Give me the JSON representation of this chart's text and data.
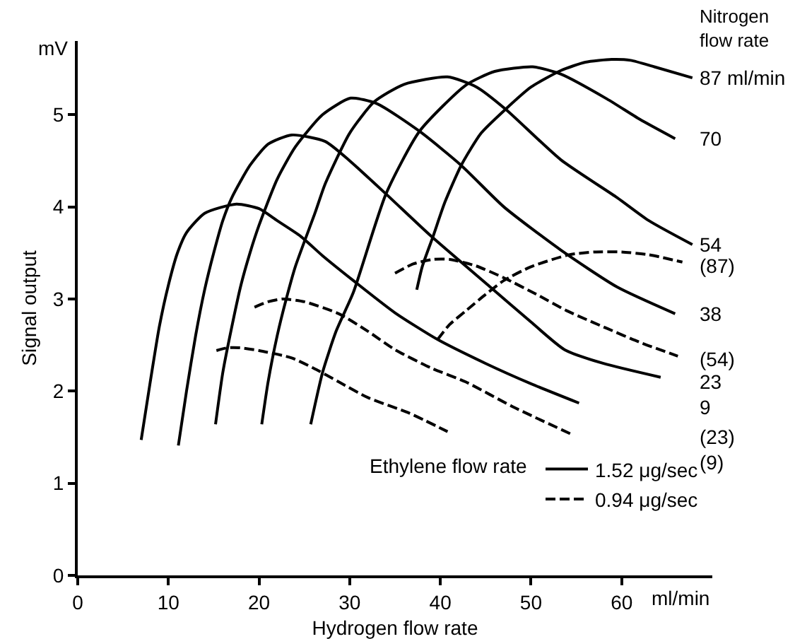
{
  "chart_data": {
    "type": "line",
    "xlabel": "Hydrogen flow rate",
    "ylabel": "Signal output",
    "legend_title": "Ethylene flow rate",
    "xlim": [
      0,
      70
    ],
    "ylim": [
      0,
      5.8
    ],
    "xticks": [
      0,
      10,
      20,
      30,
      40,
      50,
      60
    ],
    "yticks": [
      0,
      1,
      2,
      3,
      4,
      5
    ],
    "grid": false,
    "legend": "bottom right",
    "marker": "none",
    "annotations": [
      "mV",
      "Nitrogen\nflow rate",
      "ml/min",
      "87 ml/min",
      "70",
      "54",
      "(87)",
      "38",
      "(54)",
      "23",
      "9",
      "(23)",
      "(9)"
    ],
    "series": [
      {
        "name": "1.52 μg/sec",
        "color": "#000000",
        "line_style": "solid",
        "x": [
          7,
          8,
          9,
          10,
          11,
          12,
          14,
          17.5,
          20,
          22,
          24.6,
          27,
          30.4,
          35,
          39.7,
          45,
          50,
          55.3
        ],
        "values": [
          1.47,
          2.1,
          2.7,
          3.15,
          3.5,
          3.72,
          3.93,
          4.03,
          3.98,
          3.85,
          3.68,
          3.47,
          3.2,
          2.85,
          2.56,
          2.3,
          2.08,
          1.87
        ]
      },
      {
        "color": "#000000",
        "line_style": "solid",
        "x": [
          11.1,
          12,
          13,
          14,
          15,
          16,
          17,
          19,
          21,
          23.6,
          27.3,
          30,
          34,
          39,
          45.5,
          50,
          53.7,
          58,
          64.3
        ],
        "values": [
          1.41,
          2.0,
          2.6,
          3.1,
          3.5,
          3.85,
          4.1,
          4.45,
          4.68,
          4.78,
          4.71,
          4.5,
          4.14,
          3.68,
          3.13,
          2.75,
          2.45,
          2.3,
          2.15
        ]
      },
      {
        "color": "#000000",
        "line_style": "solid",
        "x": [
          15.2,
          16,
          17,
          18,
          19,
          20,
          22,
          24,
          27,
          30.1,
          33,
          37.7,
          42.3,
          47,
          53.3,
          59.5,
          65.9
        ],
        "values": [
          1.64,
          2.2,
          2.7,
          3.15,
          3.5,
          3.8,
          4.3,
          4.65,
          5.0,
          5.18,
          5.12,
          4.82,
          4.45,
          4.0,
          3.53,
          3.13,
          2.84
        ]
      },
      {
        "color": "#000000",
        "line_style": "solid",
        "x": [
          20.3,
          21,
          22,
          23,
          24,
          26.2,
          27.3,
          30,
          32.7,
          36,
          40.8,
          44,
          47.2,
          53.3,
          59.5,
          63,
          67.8
        ],
        "values": [
          1.64,
          2.1,
          2.6,
          3.0,
          3.35,
          3.94,
          4.25,
          4.8,
          5.14,
          5.33,
          5.41,
          5.3,
          5.06,
          4.51,
          4.1,
          3.85,
          3.59
        ]
      },
      {
        "color": "#000000",
        "line_style": "solid",
        "x": [
          25.7,
          27,
          28.5,
          30.4,
          34,
          37.7,
          42.8,
          46,
          50.2,
          53.3,
          58.4,
          62,
          65.9
        ],
        "values": [
          1.64,
          2.2,
          2.65,
          3.07,
          4.14,
          4.82,
          5.32,
          5.47,
          5.52,
          5.44,
          5.17,
          4.95,
          4.74
        ]
      },
      {
        "color": "#000000",
        "line_style": "solid",
        "x": [
          37.4,
          38,
          39.2,
          40.5,
          42.3,
          44.5,
          47.2,
          50,
          53.3,
          56,
          58.9,
          61,
          63.6,
          67.8
        ],
        "values": [
          3.1,
          3.35,
          3.68,
          4.05,
          4.45,
          4.8,
          5.06,
          5.3,
          5.48,
          5.57,
          5.6,
          5.59,
          5.52,
          5.4
        ]
      },
      {
        "name": "0.94 μg/sec",
        "color": "#000000",
        "line_style": "dashed",
        "x": [
          15.3,
          16.5,
          17.9,
          20,
          23.6,
          26,
          28.8,
          32,
          36.6,
          40.8
        ],
        "values": [
          2.44,
          2.47,
          2.47,
          2.44,
          2.36,
          2.25,
          2.1,
          1.93,
          1.76,
          1.56
        ]
      },
      {
        "color": "#000000",
        "line_style": "dashed",
        "x": [
          19.5,
          21,
          22.6,
          25,
          28.8,
          32,
          35,
          39,
          42.8,
          48,
          54.5
        ],
        "values": [
          2.91,
          2.97,
          3.0,
          2.97,
          2.84,
          2.65,
          2.45,
          2.25,
          2.1,
          1.83,
          1.53
        ]
      },
      {
        "color": "#000000",
        "line_style": "dashed",
        "x": [
          35,
          37,
          39.2,
          41,
          43.9,
          47,
          50.6,
          54,
          58.4,
          62,
          66.2
        ],
        "values": [
          3.28,
          3.38,
          3.43,
          3.43,
          3.36,
          3.23,
          3.05,
          2.87,
          2.68,
          2.53,
          2.38
        ]
      },
      {
        "color": "#000000",
        "line_style": "dashed",
        "x": [
          39.7,
          41,
          42.8,
          45,
          47,
          50,
          54.2,
          57,
          60,
          63,
          66.7
        ],
        "values": [
          2.56,
          2.72,
          2.87,
          3.05,
          3.2,
          3.35,
          3.48,
          3.51,
          3.51,
          3.48,
          3.4
        ]
      }
    ]
  }
}
